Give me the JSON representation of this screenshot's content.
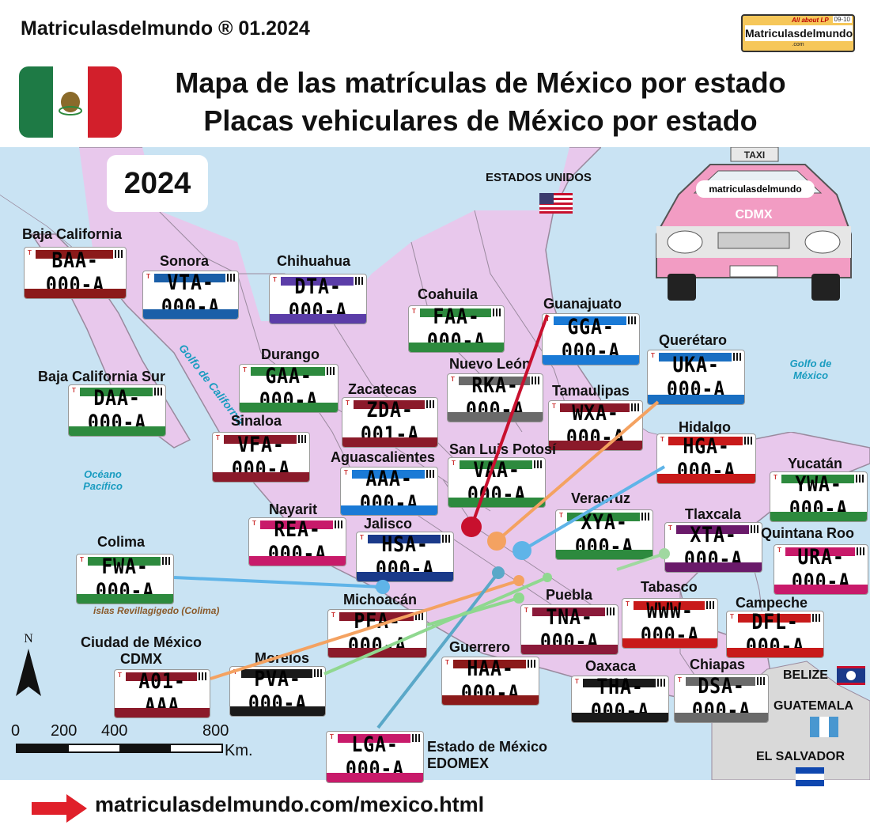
{
  "header": {
    "brand": "Matriculasdelmundo ® 01.2024",
    "logo_tagline": "All about LP",
    "logo_badge": "09-10",
    "logo_name": "Matriculasdelmundo",
    "logo_domain": ".com",
    "title_line1": "Mapa de las matrículas de México por estado",
    "title_line2": "Placas vehiculares de México por estado"
  },
  "map": {
    "year": "2024",
    "countries": {
      "usa": "ESTADOS UNIDOS",
      "belize": "BELIZE",
      "guatemala": "GUATEMALA",
      "el_salvador": "EL SALVADOR"
    },
    "seas": {
      "gulf_california": "Golfo de California",
      "gulf_mexico": "Golfo de México",
      "pacific": "Océano Pacífico",
      "islands": "islas Revillagigedo (Colima)"
    },
    "taxi_label": "matriculasdelmundo",
    "taxi_sign": "TAXI",
    "taxi_text": "CDMX",
    "north_label": "N",
    "scale": {
      "ticks": [
        "0",
        "200",
        "400",
        "800"
      ],
      "unit": "Km."
    },
    "colors": {
      "sea": "#c9e3f3",
      "land": "#e8c8ec",
      "border": "#9a8a9e"
    }
  },
  "states": [
    {
      "name": "Baja California",
      "plate": "BAA-000-A",
      "band": "#8b1a1a"
    },
    {
      "name": "Sonora",
      "plate": "VTA-000-A",
      "band": "#1a5fa8"
    },
    {
      "name": "Chihuahua",
      "plate": "DTA-000-A",
      "band": "#5b3da8"
    },
    {
      "name": "Coahuila",
      "plate": "FAA-000-A",
      "band": "#2d8a3e"
    },
    {
      "name": "Guanajuato",
      "plate": "GGA-000-A",
      "band": "#1a7ad6"
    },
    {
      "name": "Querétaro",
      "plate": "UKA-000-A",
      "band": "#1a6fc2"
    },
    {
      "name": "Baja California Sur",
      "plate": "DAA-000-A",
      "band": "#2d8a3e"
    },
    {
      "name": "Durango",
      "plate": "GAA-000-A",
      "band": "#2d8a3e"
    },
    {
      "name": "Zacatecas",
      "plate": "ZDA-001-A",
      "band": "#8b1a2a"
    },
    {
      "name": "Nuevo León",
      "plate": "RKA-000-A",
      "band": "#6a6a6a"
    },
    {
      "name": "Tamaulipas",
      "plate": "WXA-000-A",
      "band": "#8b1a2a"
    },
    {
      "name": "Sinaloa",
      "plate": "VFA-000-A",
      "band": "#8b1a2a"
    },
    {
      "name": "Hidalgo",
      "plate": "HGA-000-A",
      "band": "#c81a1a"
    },
    {
      "name": "Aguascalientes",
      "plate": "AAA-000-A",
      "band": "#1a7ad6"
    },
    {
      "name": "San Luis Potosí",
      "plate": "VAA-000-A",
      "band": "#2d8a3e"
    },
    {
      "name": "Yucatán",
      "plate": "YWA-000-A",
      "band": "#2d8a3e"
    },
    {
      "name": "Nayarit",
      "plate": "REA-000-A",
      "band": "#c81a6a"
    },
    {
      "name": "Jalisco",
      "plate": "HSA-000-A",
      "band": "#1a3a8a"
    },
    {
      "name": "Veracruz",
      "plate": "XYA-000-A",
      "band": "#2d8a3e"
    },
    {
      "name": "Tlaxcala",
      "plate": "XTA-000-A",
      "band": "#6a1a6a"
    },
    {
      "name": "Quintana Roo",
      "plate": "URA-000-A",
      "band": "#c81a6a"
    },
    {
      "name": "Colima",
      "plate": "FWA-000-A",
      "band": "#2d8a3e"
    },
    {
      "name": "Michoacán",
      "plate": "PFA-000-A",
      "band": "#8b1a2a"
    },
    {
      "name": "Puebla",
      "plate": "TNA-000-A",
      "band": "#8b1a3a"
    },
    {
      "name": "Tabasco",
      "plate": "WWW-000-A",
      "band": "#c81a1a"
    },
    {
      "name": "Campeche",
      "plate": "DFL-000-A",
      "band": "#c81a1a"
    },
    {
      "name": "Ciudad de México",
      "name2": "CDMX",
      "plate": "A01-AAA",
      "band": "#8b1a2a"
    },
    {
      "name": "Morelos",
      "plate": "PVA-000-A",
      "band": "#1a1a1a"
    },
    {
      "name": "Guerrero",
      "plate": "HAA-000-A",
      "band": "#8b1a1a"
    },
    {
      "name": "Oaxaca",
      "plate": "THA-000-A",
      "band": "#1a1a1a"
    },
    {
      "name": "Chiapas",
      "plate": "DSA-000-A",
      "band": "#6a6a6a"
    },
    {
      "name": "Estado de México",
      "name2": "EDOMEX",
      "plate": "LGA-000-A",
      "band": "#c81a6a"
    }
  ],
  "footer": {
    "url": "matriculasdelmundo.com/mexico.html"
  }
}
